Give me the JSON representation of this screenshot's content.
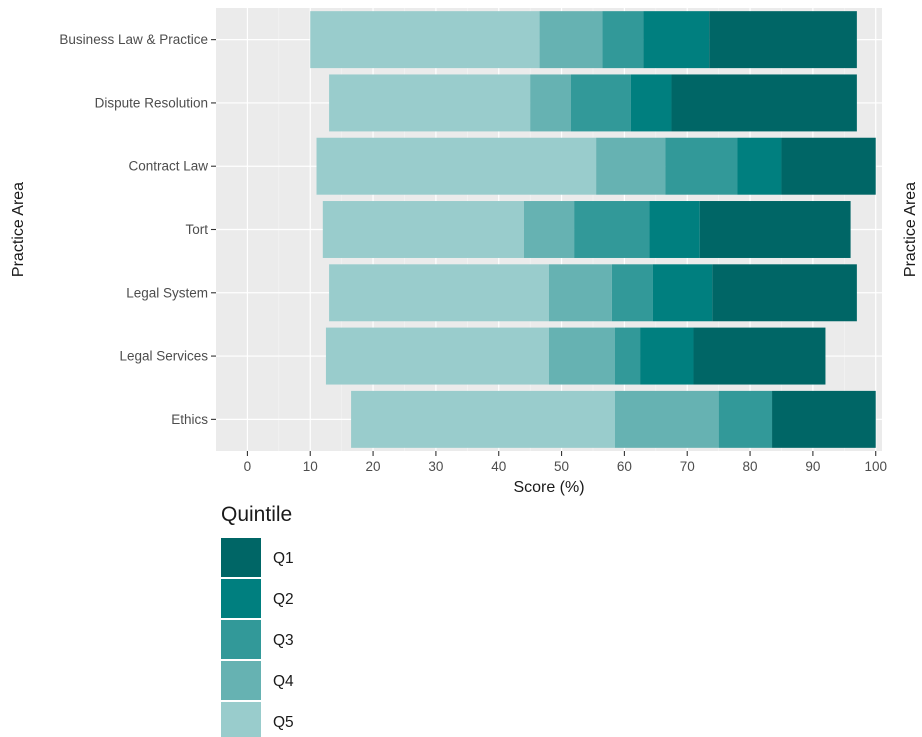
{
  "chart_data": {
    "type": "bar",
    "orientation": "horizontal",
    "stacked": true,
    "xlabel": "Score (%)",
    "ylabel": "Practice Area",
    "ylabel_right": "Practice Area",
    "xlim": [
      -5,
      101
    ],
    "xticks": [
      0,
      10,
      20,
      30,
      40,
      50,
      60,
      70,
      80,
      90,
      100
    ],
    "grid": true,
    "legend": {
      "title": "Quintile",
      "position": "bottom-left"
    },
    "categories": [
      "Business Law & Practice",
      "Dispute Resolution",
      "Contract Law",
      "Tort",
      "Legal System",
      "Legal Services",
      "Ethics"
    ],
    "series": [
      {
        "name": "Q5",
        "color": "#99cccc",
        "segments": [
          [
            10,
            46.5
          ],
          [
            13,
            45
          ],
          [
            11,
            55.5
          ],
          [
            12,
            44
          ],
          [
            13,
            48
          ],
          [
            12.5,
            48
          ],
          [
            16.5,
            58.5
          ]
        ]
      },
      {
        "name": "Q4",
        "color": "#66b2b2",
        "segments": [
          [
            46.5,
            56.5
          ],
          [
            45,
            51.5
          ],
          [
            55.5,
            66.5
          ],
          [
            44,
            52
          ],
          [
            48,
            58
          ],
          [
            48,
            58.5
          ],
          [
            58.5,
            75
          ]
        ]
      },
      {
        "name": "Q3",
        "color": "#329999",
        "segments": [
          [
            56.5,
            63
          ],
          [
            51.5,
            61
          ],
          [
            66.5,
            78
          ],
          [
            52,
            64
          ],
          [
            58,
            64.5
          ],
          [
            58.5,
            62.5
          ],
          [
            75,
            83.5
          ]
        ]
      },
      {
        "name": "Q2",
        "color": "#007f7f",
        "segments": [
          [
            63,
            73.5
          ],
          [
            61,
            67.5
          ],
          [
            78,
            85
          ],
          [
            64,
            72
          ],
          [
            64.5,
            74
          ],
          [
            62.5,
            71
          ],
          null
        ]
      },
      {
        "name": "Q1",
        "color": "#006666",
        "segments": [
          [
            73.5,
            97
          ],
          [
            67.5,
            97
          ],
          [
            85,
            100
          ],
          [
            72,
            96
          ],
          [
            74,
            97
          ],
          [
            71,
            92
          ],
          [
            83.5,
            100
          ]
        ]
      }
    ],
    "legend_order": [
      "Q1",
      "Q2",
      "Q3",
      "Q4",
      "Q5"
    ]
  }
}
